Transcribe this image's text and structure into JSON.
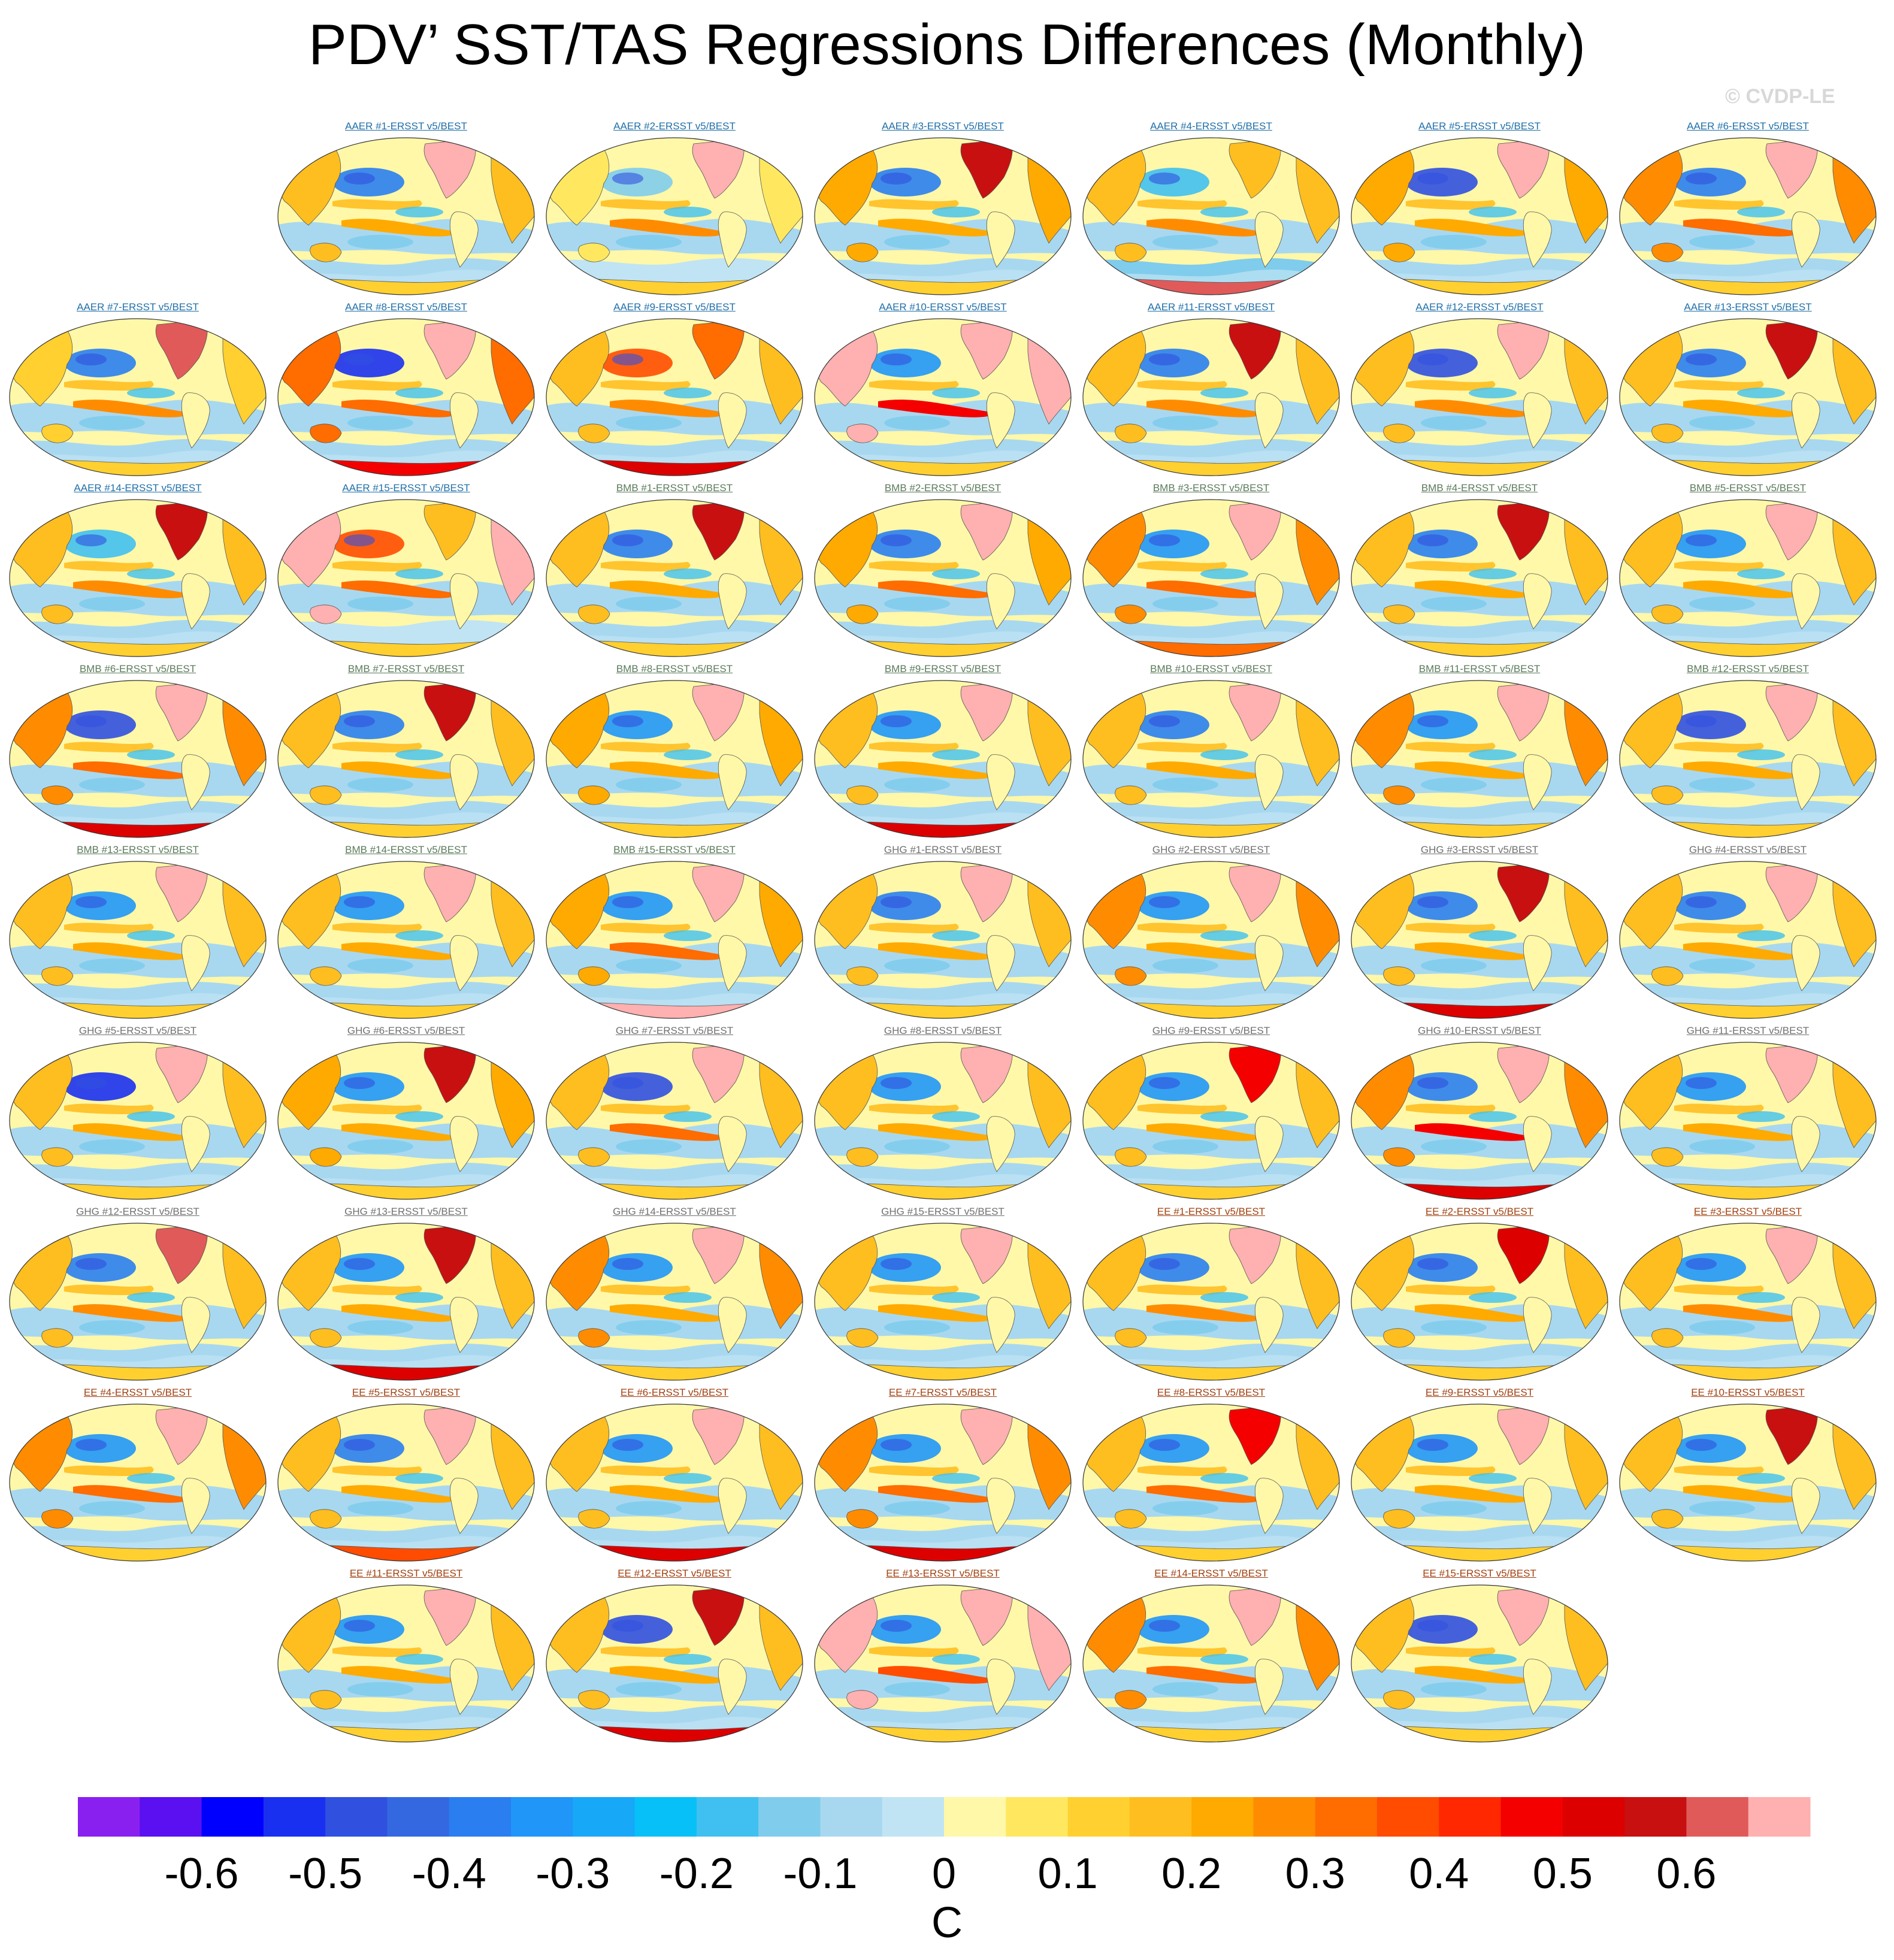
{
  "chart_data": {
    "type": "heatmap",
    "title": "PDV’ SST/TAS Regressions Differences (Monthly)",
    "watermark": "© CVDP-LE",
    "units": "C",
    "colorbar": {
      "tick_labels": [
        "-0.6",
        "-0.5",
        "-0.4",
        "-0.3",
        "-0.2",
        "-0.1",
        "0",
        "0.1",
        "0.2",
        "0.3",
        "0.4",
        "0.5",
        "0.6"
      ],
      "colors": [
        "#8a20f0",
        "#5a10f0",
        "#0000ff",
        "#1a30f0",
        "#3050e0",
        "#3468e0",
        "#2a7ef0",
        "#2096f8",
        "#18a8f8",
        "#08c0f8",
        "#40c0f0",
        "#80ccec",
        "#a8d8f0",
        "#c0e4f4",
        "#fff8a8",
        "#ffe860",
        "#ffd030",
        "#ffbe20",
        "#ffaa00",
        "#ff8c00",
        "#ff6c00",
        "#ff4c00",
        "#ff2800",
        "#f40000",
        "#dc0000",
        "#c81010",
        "#e05a5a",
        "#ffb0b0"
      ]
    },
    "groups": [
      {
        "name": "AER",
        "label_color": "#1f6fa8"
      },
      {
        "name": "BMB",
        "label_color": "#5a7a5a"
      },
      {
        "name": "GHG",
        "label_color": "#707070"
      },
      {
        "name": "EE",
        "label_color": "#a04010"
      }
    ],
    "panels": [
      {
        "label": "AAER #1-ERSST v5/BEST",
        "group": "AER",
        "land": "#ffbe20",
        "na": "#ffb0b0",
        "nino": "#ffaa00",
        "np": "#2a7ef0",
        "so": "#a8d8f0",
        "ant": "#ffd030"
      },
      {
        "label": "AAER #2-ERSST v5/BEST",
        "group": "AER",
        "land": "#ffe860",
        "na": "#ffb0b0",
        "nino": "#ff8c00",
        "np": "#80ccec",
        "so": "#c0e4f4",
        "ant": "#ffd030"
      },
      {
        "label": "AAER #3-ERSST v5/BEST",
        "group": "AER",
        "land": "#ffaa00",
        "na": "#c81010",
        "nino": "#ffaa00",
        "np": "#2a7ef0",
        "so": "#a8d8f0",
        "ant": "#ffd030"
      },
      {
        "label": "AAER #4-ERSST v5/BEST",
        "group": "AER",
        "land": "#ffbe20",
        "na": "#ffbe20",
        "nino": "#ff8c00",
        "np": "#40c0f0",
        "so": "#80ccec",
        "ant": "#e05a5a"
      },
      {
        "label": "AAER #5-ERSST v5/BEST",
        "group": "AER",
        "land": "#ffaa00",
        "na": "#ffb0b0",
        "nino": "#ffaa00",
        "np": "#3050e0",
        "so": "#a8d8f0",
        "ant": "#ffd030"
      },
      {
        "label": "AAER #6-ERSST v5/BEST",
        "group": "AER",
        "land": "#ff8c00",
        "na": "#ffb0b0",
        "nino": "#ff6c00",
        "np": "#2a7ef0",
        "so": "#a8d8f0",
        "ant": "#ffd030"
      },
      {
        "label": "AAER #7-ERSST v5/BEST",
        "group": "AER",
        "land": "#ffd030",
        "na": "#e05a5a",
        "nino": "#ff8c00",
        "np": "#2a7ef0",
        "so": "#a8d8f0",
        "ant": "#ffd030"
      },
      {
        "label": "AAER #8-ERSST v5/BEST",
        "group": "AER",
        "land": "#ff6c00",
        "na": "#ffb0b0",
        "nino": "#ff6c00",
        "np": "#1a30f0",
        "so": "#a8d8f0",
        "ant": "#f40000"
      },
      {
        "label": "AAER #9-ERSST v5/BEST",
        "group": "AER",
        "land": "#ffbe20",
        "na": "#ff6c00",
        "nino": "#ff8c00",
        "np": "#ff4c00",
        "so": "#a8d8f0",
        "ant": "#dc0000"
      },
      {
        "label": "AAER #10-ERSST v5/BEST",
        "group": "AER",
        "land": "#ffb0b0",
        "na": "#ffb0b0",
        "nino": "#f40000",
        "np": "#2096f8",
        "so": "#a8d8f0",
        "ant": "#ffd030"
      },
      {
        "label": "AAER #11-ERSST v5/BEST",
        "group": "AER",
        "land": "#ffbe20",
        "na": "#c81010",
        "nino": "#ff8c00",
        "np": "#2a7ef0",
        "so": "#a8d8f0",
        "ant": "#ffd030"
      },
      {
        "label": "AAER #12-ERSST v5/BEST",
        "group": "AER",
        "land": "#ffbe20",
        "na": "#ffb0b0",
        "nino": "#ff8c00",
        "np": "#3050e0",
        "so": "#a8d8f0",
        "ant": "#ffd030"
      },
      {
        "label": "AAER #13-ERSST v5/BEST",
        "group": "AER",
        "land": "#ffbe20",
        "na": "#c81010",
        "nino": "#ffaa00",
        "np": "#2a7ef0",
        "so": "#a8d8f0",
        "ant": "#ffd030"
      },
      {
        "label": "AAER #14-ERSST v5/BEST",
        "group": "AER",
        "land": "#ffbe20",
        "na": "#c81010",
        "nino": "#ff8c00",
        "np": "#40c0f0",
        "so": "#a8d8f0",
        "ant": "#ffd030"
      },
      {
        "label": "AAER #15-ERSST v5/BEST",
        "group": "AER",
        "land": "#ffb0b0",
        "na": "#ffbe20",
        "nino": "#ff6c00",
        "np": "#ff4c00",
        "so": "#c0e4f4",
        "ant": "#ffd030"
      },
      {
        "label": "BMB #1-ERSST v5/BEST",
        "group": "BMB",
        "land": "#ffbe20",
        "na": "#c81010",
        "nino": "#ffaa00",
        "np": "#2a7ef0",
        "so": "#a8d8f0",
        "ant": "#ffd030"
      },
      {
        "label": "BMB #2-ERSST v5/BEST",
        "group": "BMB",
        "land": "#ffaa00",
        "na": "#ffb0b0",
        "nino": "#ff6c00",
        "np": "#2a7ef0",
        "so": "#a8d8f0",
        "ant": "#ffd030"
      },
      {
        "label": "BMB #3-ERSST v5/BEST",
        "group": "BMB",
        "land": "#ff8c00",
        "na": "#ffb0b0",
        "nino": "#ff6c00",
        "np": "#2096f8",
        "so": "#a8d8f0",
        "ant": "#ff6c00"
      },
      {
        "label": "BMB #4-ERSST v5/BEST",
        "group": "BMB",
        "land": "#ffbe20",
        "na": "#c81010",
        "nino": "#ffaa00",
        "np": "#2a7ef0",
        "so": "#a8d8f0",
        "ant": "#ffd030"
      },
      {
        "label": "BMB #5-ERSST v5/BEST",
        "group": "BMB",
        "land": "#ffbe20",
        "na": "#ffb0b0",
        "nino": "#ffaa00",
        "np": "#2096f8",
        "so": "#a8d8f0",
        "ant": "#ffd030"
      },
      {
        "label": "BMB #6-ERSST v5/BEST",
        "group": "BMB",
        "land": "#ff8c00",
        "na": "#ffb0b0",
        "nino": "#ff6c00",
        "np": "#3050e0",
        "so": "#a8d8f0",
        "ant": "#dc0000"
      },
      {
        "label": "BMB #7-ERSST v5/BEST",
        "group": "BMB",
        "land": "#ffbe20",
        "na": "#c81010",
        "nino": "#ffaa00",
        "np": "#2a7ef0",
        "so": "#a8d8f0",
        "ant": "#ffd030"
      },
      {
        "label": "BMB #8-ERSST v5/BEST",
        "group": "BMB",
        "land": "#ffaa00",
        "na": "#ffb0b0",
        "nino": "#ffaa00",
        "np": "#2096f8",
        "so": "#a8d8f0",
        "ant": "#ffd030"
      },
      {
        "label": "BMB #9-ERSST v5/BEST",
        "group": "BMB",
        "land": "#ffbe20",
        "na": "#ffb0b0",
        "nino": "#ffaa00",
        "np": "#2096f8",
        "so": "#a8d8f0",
        "ant": "#dc0000"
      },
      {
        "label": "BMB #10-ERSST v5/BEST",
        "group": "BMB",
        "land": "#ffbe20",
        "na": "#ffb0b0",
        "nino": "#ffaa00",
        "np": "#2a7ef0",
        "so": "#a8d8f0",
        "ant": "#ffd030"
      },
      {
        "label": "BMB #11-ERSST v5/BEST",
        "group": "BMB",
        "land": "#ff8c00",
        "na": "#ffb0b0",
        "nino": "#ffaa00",
        "np": "#2096f8",
        "so": "#a8d8f0",
        "ant": "#ffd030"
      },
      {
        "label": "BMB #12-ERSST v5/BEST",
        "group": "BMB",
        "land": "#ffbe20",
        "na": "#ffb0b0",
        "nino": "#ffaa00",
        "np": "#3050e0",
        "so": "#a8d8f0",
        "ant": "#ffd030"
      },
      {
        "label": "BMB #13-ERSST v5/BEST",
        "group": "BMB",
        "land": "#ffbe20",
        "na": "#ffb0b0",
        "nino": "#ffaa00",
        "np": "#2096f8",
        "so": "#a8d8f0",
        "ant": "#ffd030"
      },
      {
        "label": "BMB #14-ERSST v5/BEST",
        "group": "BMB",
        "land": "#ffbe20",
        "na": "#ffb0b0",
        "nino": "#ffaa00",
        "np": "#2096f8",
        "so": "#a8d8f0",
        "ant": "#ffd030"
      },
      {
        "label": "BMB #15-ERSST v5/BEST",
        "group": "BMB",
        "land": "#ffaa00",
        "na": "#ffb0b0",
        "nino": "#ff6c00",
        "np": "#2096f8",
        "so": "#a8d8f0",
        "ant": "#ffb0b0"
      },
      {
        "label": "GHG #1-ERSST v5/BEST",
        "group": "GHG",
        "land": "#ffbe20",
        "na": "#ffb0b0",
        "nino": "#ffaa00",
        "np": "#2a7ef0",
        "so": "#a8d8f0",
        "ant": "#ffd030"
      },
      {
        "label": "GHG #2-ERSST v5/BEST",
        "group": "GHG",
        "land": "#ff8c00",
        "na": "#ffb0b0",
        "nino": "#ffaa00",
        "np": "#2096f8",
        "so": "#a8d8f0",
        "ant": "#ffd030"
      },
      {
        "label": "GHG #3-ERSST v5/BEST",
        "group": "GHG",
        "land": "#ffbe20",
        "na": "#c81010",
        "nino": "#ffaa00",
        "np": "#2a7ef0",
        "so": "#a8d8f0",
        "ant": "#dc0000"
      },
      {
        "label": "GHG #4-ERSST v5/BEST",
        "group": "GHG",
        "land": "#ffbe20",
        "na": "#ffb0b0",
        "nino": "#ffaa00",
        "np": "#2a7ef0",
        "so": "#a8d8f0",
        "ant": "#ffd030"
      },
      {
        "label": "GHG #5-ERSST v5/BEST",
        "group": "GHG",
        "land": "#ffbe20",
        "na": "#ffb0b0",
        "nino": "#ffaa00",
        "np": "#1a30f0",
        "so": "#a8d8f0",
        "ant": "#ffd030"
      },
      {
        "label": "GHG #6-ERSST v5/BEST",
        "group": "GHG",
        "land": "#ffaa00",
        "na": "#c81010",
        "nino": "#ffaa00",
        "np": "#2096f8",
        "so": "#a8d8f0",
        "ant": "#ffd030"
      },
      {
        "label": "GHG #7-ERSST v5/BEST",
        "group": "GHG",
        "land": "#ffbe20",
        "na": "#ffb0b0",
        "nino": "#ff6c00",
        "np": "#3050e0",
        "so": "#a8d8f0",
        "ant": "#ffd030"
      },
      {
        "label": "GHG #8-ERSST v5/BEST",
        "group": "GHG",
        "land": "#ffbe20",
        "na": "#ffb0b0",
        "nino": "#ffaa00",
        "np": "#2096f8",
        "so": "#a8d8f0",
        "ant": "#ffd030"
      },
      {
        "label": "GHG #9-ERSST v5/BEST",
        "group": "GHG",
        "land": "#ffbe20",
        "na": "#f40000",
        "nino": "#ffaa00",
        "np": "#2096f8",
        "so": "#a8d8f0",
        "ant": "#ffd030"
      },
      {
        "label": "GHG #10-ERSST v5/BEST",
        "group": "GHG",
        "land": "#ff8c00",
        "na": "#ffb0b0",
        "nino": "#f40000",
        "np": "#2a7ef0",
        "so": "#a8d8f0",
        "ant": "#dc0000"
      },
      {
        "label": "GHG #11-ERSST v5/BEST",
        "group": "GHG",
        "land": "#ffbe20",
        "na": "#ffb0b0",
        "nino": "#ffaa00",
        "np": "#2096f8",
        "so": "#a8d8f0",
        "ant": "#ffd030"
      },
      {
        "label": "GHG #12-ERSST v5/BEST",
        "group": "GHG",
        "land": "#ffbe20",
        "na": "#e05a5a",
        "nino": "#ff8c00",
        "np": "#2a7ef0",
        "so": "#a8d8f0",
        "ant": "#ffd030"
      },
      {
        "label": "GHG #13-ERSST v5/BEST",
        "group": "GHG",
        "land": "#ffbe20",
        "na": "#c81010",
        "nino": "#ffaa00",
        "np": "#2096f8",
        "so": "#a8d8f0",
        "ant": "#dc0000"
      },
      {
        "label": "GHG #14-ERSST v5/BEST",
        "group": "GHG",
        "land": "#ff8c00",
        "na": "#ffb0b0",
        "nino": "#ffaa00",
        "np": "#2096f8",
        "so": "#a8d8f0",
        "ant": "#ffd030"
      },
      {
        "label": "GHG #15-ERSST v5/BEST",
        "group": "GHG",
        "land": "#ffbe20",
        "na": "#ffb0b0",
        "nino": "#ffaa00",
        "np": "#2096f8",
        "so": "#a8d8f0",
        "ant": "#ffd030"
      },
      {
        "label": "EE #1-ERSST v5/BEST",
        "group": "EE",
        "land": "#ffbe20",
        "na": "#ffb0b0",
        "nino": "#ff8c00",
        "np": "#2a7ef0",
        "so": "#a8d8f0",
        "ant": "#ffd030"
      },
      {
        "label": "EE #2-ERSST v5/BEST",
        "group": "EE",
        "land": "#ffbe20",
        "na": "#dc0000",
        "nino": "#ffaa00",
        "np": "#2a7ef0",
        "so": "#a8d8f0",
        "ant": "#ffd030"
      },
      {
        "label": "EE #3-ERSST v5/BEST",
        "group": "EE",
        "land": "#ffbe20",
        "na": "#ffb0b0",
        "nino": "#ff8c00",
        "np": "#2096f8",
        "so": "#a8d8f0",
        "ant": "#ffd030"
      },
      {
        "label": "EE #4-ERSST v5/BEST",
        "group": "EE",
        "land": "#ff8c00",
        "na": "#ffb0b0",
        "nino": "#ff6c00",
        "np": "#2096f8",
        "so": "#a8d8f0",
        "ant": "#ffd030"
      },
      {
        "label": "EE #5-ERSST v5/BEST",
        "group": "EE",
        "land": "#ffbe20",
        "na": "#ffb0b0",
        "nino": "#ffaa00",
        "np": "#2a7ef0",
        "so": "#a8d8f0",
        "ant": "#ff4c00"
      },
      {
        "label": "EE #6-ERSST v5/BEST",
        "group": "EE",
        "land": "#ffbe20",
        "na": "#ffb0b0",
        "nino": "#ffaa00",
        "np": "#2096f8",
        "so": "#a8d8f0",
        "ant": "#dc0000"
      },
      {
        "label": "EE #7-ERSST v5/BEST",
        "group": "EE",
        "land": "#ff8c00",
        "na": "#ffb0b0",
        "nino": "#ff6c00",
        "np": "#2096f8",
        "so": "#a8d8f0",
        "ant": "#dc0000"
      },
      {
        "label": "EE #8-ERSST v5/BEST",
        "group": "EE",
        "land": "#ffbe20",
        "na": "#f40000",
        "nino": "#ff6c00",
        "np": "#2096f8",
        "so": "#a8d8f0",
        "ant": "#ffd030"
      },
      {
        "label": "EE #9-ERSST v5/BEST",
        "group": "EE",
        "land": "#ffbe20",
        "na": "#ffb0b0",
        "nino": "#ffaa00",
        "np": "#2096f8",
        "so": "#a8d8f0",
        "ant": "#ffd030"
      },
      {
        "label": "EE #10-ERSST v5/BEST",
        "group": "EE",
        "land": "#ffbe20",
        "na": "#c81010",
        "nino": "#ffaa00",
        "np": "#2096f8",
        "so": "#a8d8f0",
        "ant": "#ffd030"
      },
      {
        "label": "EE #11-ERSST v5/BEST",
        "group": "EE",
        "land": "#ffbe20",
        "na": "#ffb0b0",
        "nino": "#ffaa00",
        "np": "#2096f8",
        "so": "#a8d8f0",
        "ant": "#ffd030"
      },
      {
        "label": "EE #12-ERSST v5/BEST",
        "group": "EE",
        "land": "#ffbe20",
        "na": "#c81010",
        "nino": "#ffaa00",
        "np": "#3050e0",
        "so": "#a8d8f0",
        "ant": "#dc0000"
      },
      {
        "label": "EE #13-ERSST v5/BEST",
        "group": "EE",
        "land": "#ffb0b0",
        "na": "#ffb0b0",
        "nino": "#ff4c00",
        "np": "#2096f8",
        "so": "#a8d8f0",
        "ant": "#ffd030"
      },
      {
        "label": "EE #14-ERSST v5/BEST",
        "group": "EE",
        "land": "#ff8c00",
        "na": "#ffb0b0",
        "nino": "#ff6c00",
        "np": "#2096f8",
        "so": "#a8d8f0",
        "ant": "#ffd030"
      },
      {
        "label": "EE #15-ERSST v5/BEST",
        "group": "EE",
        "land": "#ffbe20",
        "na": "#ffb0b0",
        "nino": "#ffaa00",
        "np": "#3050e0",
        "so": "#a8d8f0",
        "ant": "#ffd030"
      }
    ]
  }
}
